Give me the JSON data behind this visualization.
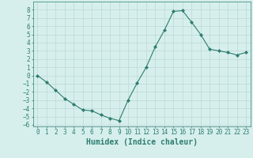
{
  "x": [
    0,
    1,
    2,
    3,
    4,
    5,
    6,
    7,
    8,
    9,
    10,
    11,
    12,
    13,
    14,
    15,
    16,
    17,
    18,
    19,
    20,
    21,
    22,
    23
  ],
  "y": [
    0,
    -0.8,
    -1.8,
    -2.8,
    -3.5,
    -4.2,
    -4.3,
    -4.8,
    -5.2,
    -5.5,
    -3.0,
    -0.9,
    1.0,
    3.5,
    5.5,
    7.8,
    7.9,
    6.5,
    5.0,
    3.2,
    3.0,
    2.8,
    2.5,
    2.8
  ],
  "xlabel": "Humidex (Indice chaleur)",
  "ylim": [
    -6.2,
    9.0
  ],
  "xlim": [
    -0.5,
    23.5
  ],
  "yticks": [
    -6,
    -5,
    -4,
    -3,
    -2,
    -1,
    0,
    1,
    2,
    3,
    4,
    5,
    6,
    7,
    8
  ],
  "xticks": [
    0,
    1,
    2,
    3,
    4,
    5,
    6,
    7,
    8,
    9,
    10,
    11,
    12,
    13,
    14,
    15,
    16,
    17,
    18,
    19,
    20,
    21,
    22,
    23
  ],
  "line_color": "#2e7d6e",
  "marker": "D",
  "marker_size": 2.0,
  "bg_color": "#d6efed",
  "grid_color": "#bcd8d5",
  "tick_label_fontsize": 5.5,
  "xlabel_fontsize": 7.0
}
